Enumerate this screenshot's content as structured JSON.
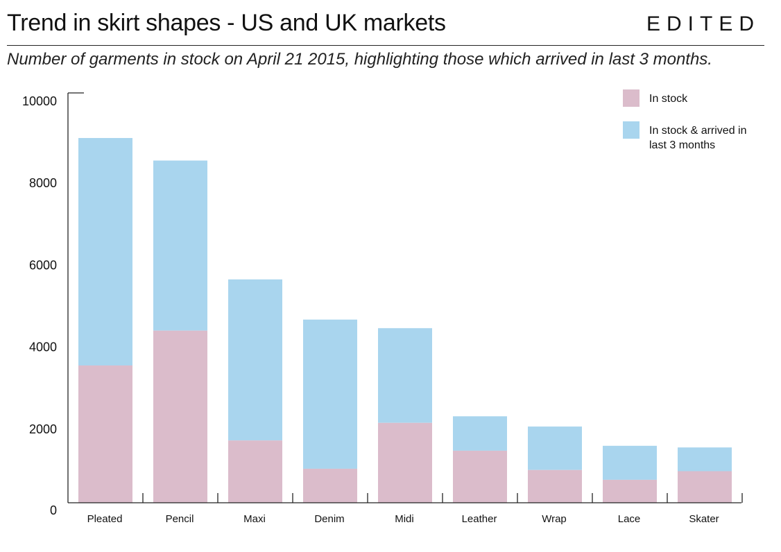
{
  "header": {
    "title": "Trend in skirt shapes - US and UK markets",
    "brand": "EDITED",
    "subtitle": "Number of garments in stock on April 21 2015, highlighting those which arrived in last 3 months."
  },
  "colors": {
    "in_stock": "#dbbccb",
    "arrived": "#a9d5ee",
    "axis": "#222222"
  },
  "chart_data": {
    "type": "bar",
    "stacked": true,
    "categories": [
      "Pleated",
      "Pencil",
      "Maxi",
      "Denim",
      "Midi",
      "Leather",
      "Wrap",
      "Lace",
      "Skater"
    ],
    "series": [
      {
        "name": "In stock",
        "values": [
          3350,
          4200,
          1520,
          830,
          1950,
          1270,
          800,
          560,
          770
        ]
      },
      {
        "name": "In stock & arrived in last 3 months",
        "values": [
          5550,
          4150,
          3930,
          3640,
          2310,
          840,
          1060,
          830,
          580
        ]
      }
    ],
    "legend": [
      {
        "label_lines": [
          "In stock"
        ]
      },
      {
        "label_lines": [
          "In stock & arrived in",
          "last 3 months"
        ]
      }
    ],
    "yticks": [
      0,
      2000,
      4000,
      6000,
      8000,
      10000
    ],
    "ylim": [
      0,
      10000
    ],
    "xlabel": "",
    "ylabel": "",
    "legend_position": "top-right",
    "grid": false
  }
}
